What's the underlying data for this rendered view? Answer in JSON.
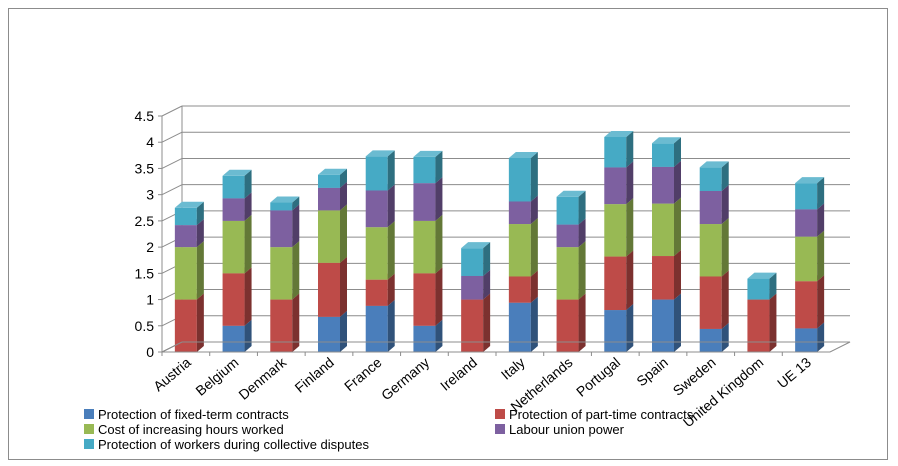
{
  "chart_data": {
    "type": "bar",
    "stacked": true,
    "three_d": true,
    "categories": [
      "Austria",
      "Belgium",
      "Denmark",
      "Finland",
      "France",
      "Germany",
      "Ireland",
      "Italy",
      "Netherlands",
      "Portugal",
      "Spain",
      "Sweden",
      "United Kingdom",
      "UE 13"
    ],
    "series": [
      {
        "name": "Protection of fixed-term contracts",
        "color": "#4a7ebb",
        "values": [
          0,
          0.5,
          0,
          0.67,
          0.88,
          0.5,
          0,
          0.94,
          0,
          0.8,
          1.0,
          0.44,
          0,
          0.45
        ]
      },
      {
        "name": "Protection of part-time contracts",
        "color": "#be4b48",
        "values": [
          1.0,
          1.0,
          1.0,
          1.03,
          0.5,
          1.0,
          1.0,
          0.5,
          1.0,
          1.02,
          0.83,
          1.0,
          1.0,
          0.9
        ]
      },
      {
        "name": "Cost of increasing hours worked",
        "color": "#98b954",
        "values": [
          1.0,
          1.0,
          1.0,
          1.0,
          1.0,
          1.0,
          0,
          1.0,
          1.0,
          1.0,
          1.0,
          1.0,
          0,
          0.85
        ]
      },
      {
        "name": "Labour union power",
        "color": "#7d60a0",
        "values": [
          0.42,
          0.43,
          0.7,
          0.43,
          0.7,
          0.72,
          0.45,
          0.43,
          0.43,
          0.7,
          0.7,
          0.63,
          0,
          0.52
        ]
      },
      {
        "name": "Protection of workers during collective disputes",
        "color": "#46aac5",
        "values": [
          0.33,
          0.43,
          0.15,
          0.25,
          0.65,
          0.5,
          0.53,
          0.83,
          0.53,
          0.58,
          0.45,
          0.45,
          0.4,
          0.5
        ]
      }
    ],
    "ylim": [
      0,
      4.5
    ],
    "yticks": [
      "0",
      "0.5",
      "1",
      "1.5",
      "2",
      "2.5",
      "3",
      "3.5",
      "4",
      "4.5"
    ],
    "grid": true,
    "legend_position": "bottom"
  }
}
